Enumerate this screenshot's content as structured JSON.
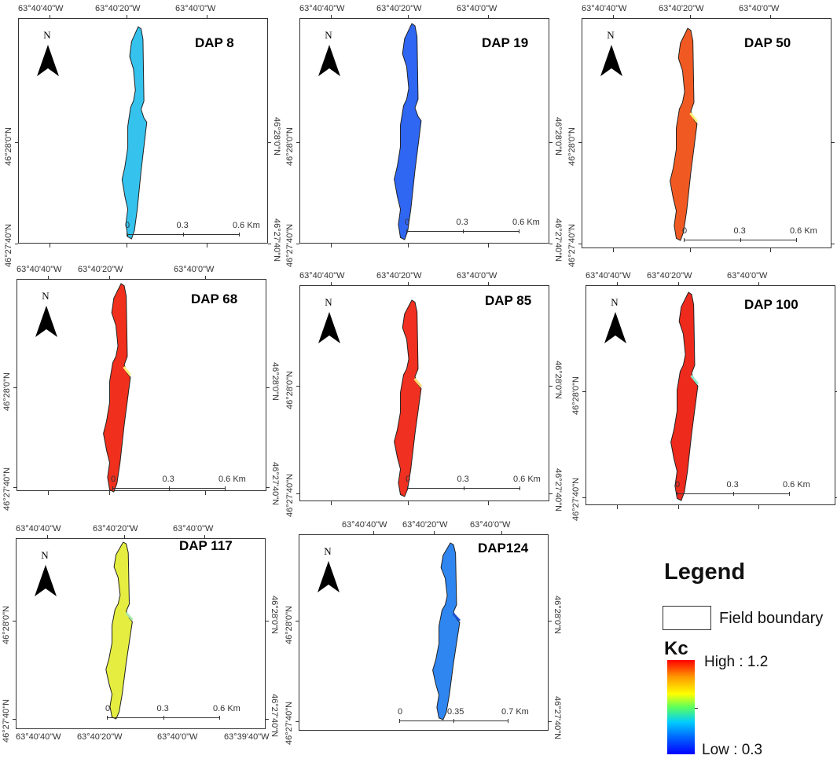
{
  "labels": {
    "north": "N",
    "lon_4040": "63°40'40\"W",
    "lon_4020": "63°40'20\"W",
    "lon_400": "63°40'0\"W",
    "lon_3940": "63°39'40\"W",
    "lat_280": "46°28'0\"N",
    "lat_2740": "46°27'40\"N",
    "km": "Km"
  },
  "colors": {
    "dap8": "#35c3ee",
    "dap19": "#2f66f2",
    "dap50": "#f05a22",
    "dap68": "#f0301c",
    "dap85": "#f03020",
    "dap100": "#ee2a1c",
    "dap117": "#e5ee40",
    "dap124": "#2f86f0"
  },
  "panels": [
    {
      "id": "dap8",
      "title": "DAP 8",
      "scale": [
        "0",
        "0.3",
        "0.6 Km"
      ]
    },
    {
      "id": "dap19",
      "title": "DAP 19",
      "scale": [
        "0",
        "0.3",
        "0.6 Km"
      ]
    },
    {
      "id": "dap50",
      "title": "DAP 50",
      "scale": [
        "0",
        "0.3",
        "0.6 Km"
      ]
    },
    {
      "id": "dap68",
      "title": "DAP 68",
      "scale": [
        "0",
        "0.3",
        "0.6 Km"
      ]
    },
    {
      "id": "dap85",
      "title": "DAP 85",
      "scale": [
        "0",
        "0.3",
        "0.6 Km"
      ]
    },
    {
      "id": "dap100",
      "title": "DAP 100",
      "scale": [
        "0",
        "0.3",
        "0.6 Km"
      ]
    },
    {
      "id": "dap117",
      "title": "DAP 117",
      "scale": [
        "0",
        "0.3",
        "0.6 Km"
      ]
    },
    {
      "id": "dap124",
      "title": "DAP124",
      "scale": [
        "0",
        "0.35",
        "0.7 Km"
      ]
    }
  ],
  "legend": {
    "title": "Legend",
    "boundary_label": "Field boundary",
    "variable": "Kc",
    "high_label": "High : 1.2",
    "low_label": "Low : 0.3",
    "high_value": 1.2,
    "low_value": 0.3
  }
}
